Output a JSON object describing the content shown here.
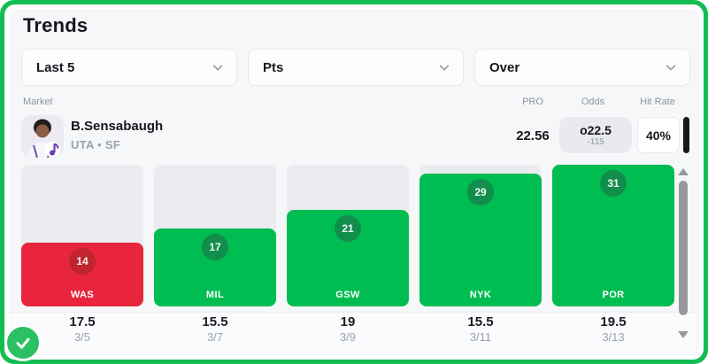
{
  "title": "Trends",
  "filters": [
    {
      "label": "Last 5"
    },
    {
      "label": "Pts"
    },
    {
      "label": "Over"
    }
  ],
  "list_header": {
    "market_label": "Market",
    "pro_label": "PRO",
    "odds_label": "Odds",
    "hit_rate_label": "Hit Rate"
  },
  "player": {
    "name": "B.Sensabaugh",
    "team_position": "UTA • SF",
    "pro_value": "22.56",
    "odds": {
      "line": "o22.5",
      "price": "-115"
    },
    "hit_rate": "40%"
  },
  "chart_data": {
    "type": "bar",
    "categories": [
      "WAS",
      "MIL",
      "GSW",
      "NYK",
      "POR"
    ],
    "values": [
      14,
      17,
      21,
      29,
      31
    ],
    "results": [
      "miss",
      "hit",
      "hit",
      "hit",
      "hit"
    ],
    "prop_lines": [
      "17.5",
      "15.5",
      "19",
      "15.5",
      "19.5"
    ],
    "dates": [
      "3/5",
      "3/7",
      "3/9",
      "3/11",
      "3/13"
    ],
    "ylim": [
      0,
      31
    ],
    "legend": "none",
    "colors": {
      "hit_bar": "#00bd52",
      "hit_badge": "#128e4c",
      "miss_bar": "#e8253c",
      "miss_badge": "#c0242f",
      "track": "#eaecf0"
    }
  },
  "theme": {
    "frame_green": "#13bd51",
    "panel_bg": "#f6f7f9",
    "text_dark": "#16181d",
    "text_gray": "#9aa2ad",
    "check_green": "#2cc063"
  }
}
